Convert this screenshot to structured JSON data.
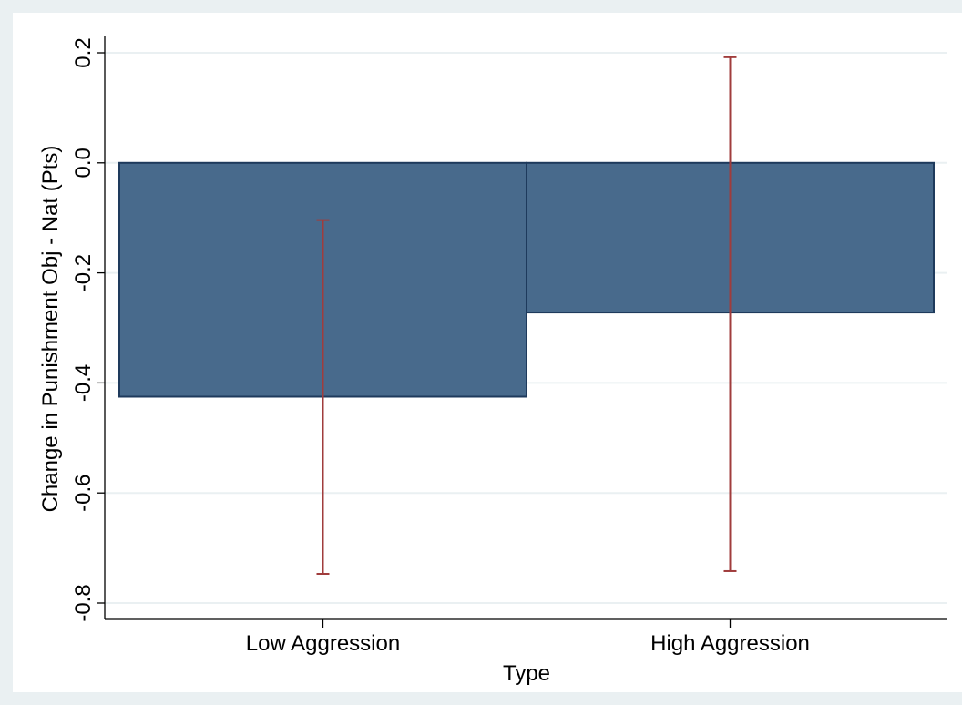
{
  "chart_data": {
    "type": "bar",
    "categories": [
      "Low Aggression",
      "High Aggression"
    ],
    "values": [
      -0.425,
      -0.272
    ],
    "error_bars": [
      {
        "low": -0.747,
        "high": -0.104
      },
      {
        "low": -0.742,
        "high": 0.192
      }
    ],
    "xlabel": "Type",
    "ylabel": "Change in Punishment Obj - Nat (Pts)",
    "ylim": [
      -0.8,
      0.2
    ],
    "yticks": [
      -0.8,
      -0.6,
      -0.4,
      -0.2,
      0.0,
      0.2
    ],
    "ytick_labels": [
      "-0.8",
      "-0.6",
      "-0.4",
      "-0.2",
      "0.0",
      "0.2"
    ],
    "grid": true
  },
  "colors": {
    "outer_background": "#eaf0f2",
    "plot_background": "#ffffff",
    "gridline": "#eaf0f2",
    "bar_fill": "#486a8c",
    "bar_stroke": "#1e3a5c",
    "error_bar": "#a03c3c"
  }
}
